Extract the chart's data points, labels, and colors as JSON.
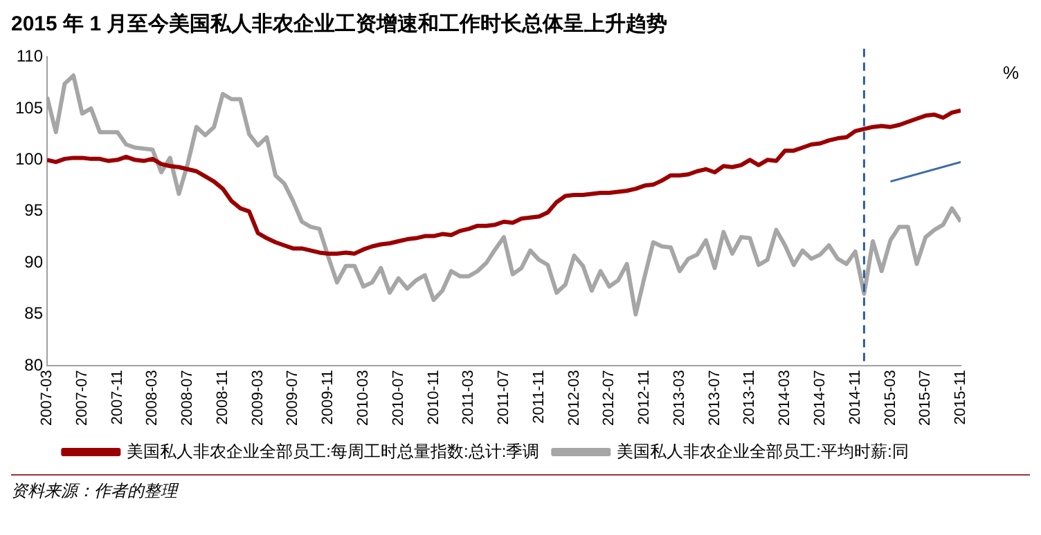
{
  "chart_data": {
    "type": "line",
    "title": "2015 年 1 月至今美国私人非农企业工资增速和工作时长总体呈上升趋势",
    "annotations": [
      "%",
      "资料来源：作者的整理"
    ],
    "x": [
      "2007-03",
      "2007-04",
      "2007-05",
      "2007-06",
      "2007-07",
      "2007-08",
      "2007-09",
      "2007-10",
      "2007-11",
      "2007-12",
      "2008-01",
      "2008-02",
      "2008-03",
      "2008-04",
      "2008-05",
      "2008-06",
      "2008-07",
      "2008-08",
      "2008-09",
      "2008-10",
      "2008-11",
      "2008-12",
      "2009-01",
      "2009-02",
      "2009-03",
      "2009-04",
      "2009-05",
      "2009-06",
      "2009-07",
      "2009-08",
      "2009-09",
      "2009-10",
      "2009-11",
      "2009-12",
      "2010-01",
      "2010-02",
      "2010-03",
      "2010-04",
      "2010-05",
      "2010-06",
      "2010-07",
      "2010-08",
      "2010-09",
      "2010-10",
      "2010-11",
      "2010-12",
      "2011-01",
      "2011-02",
      "2011-03",
      "2011-04",
      "2011-05",
      "2011-06",
      "2011-07",
      "2011-08",
      "2011-09",
      "2011-10",
      "2011-11",
      "2011-12",
      "2012-01",
      "2012-02",
      "2012-03",
      "2012-04",
      "2012-05",
      "2012-06",
      "2012-07",
      "2012-08",
      "2012-09",
      "2012-10",
      "2012-11",
      "2012-12",
      "2013-01",
      "2013-02",
      "2013-03",
      "2013-04",
      "2013-05",
      "2013-06",
      "2013-07",
      "2013-08",
      "2013-09",
      "2013-10",
      "2013-11",
      "2013-12",
      "2014-01",
      "2014-02",
      "2014-03",
      "2014-04",
      "2014-05",
      "2014-06",
      "2014-07",
      "2014-08",
      "2014-09",
      "2014-10",
      "2014-11",
      "2014-12",
      "2015-01",
      "2015-02",
      "2015-03",
      "2015-04",
      "2015-05",
      "2015-06",
      "2015-07",
      "2015-08",
      "2015-09",
      "2015-10",
      "2015-11"
    ],
    "series": [
      {
        "name": "美国私人非农企业全部员工:每周工时总量指数:总计:季调",
        "color": "#9b0000",
        "values": [
          100.0,
          99.8,
          100.1,
          100.2,
          100.2,
          100.1,
          100.1,
          99.9,
          100.0,
          100.3,
          100.0,
          99.9,
          100.1,
          99.6,
          99.4,
          99.3,
          99.1,
          98.9,
          98.4,
          97.9,
          97.2,
          96.0,
          95.3,
          95.0,
          92.9,
          92.4,
          92.0,
          91.7,
          91.4,
          91.4,
          91.2,
          91.0,
          90.9,
          90.9,
          91.0,
          90.9,
          91.3,
          91.6,
          91.8,
          91.9,
          92.1,
          92.3,
          92.4,
          92.6,
          92.6,
          92.8,
          92.7,
          93.1,
          93.3,
          93.6,
          93.6,
          93.7,
          94.0,
          93.9,
          94.3,
          94.4,
          94.5,
          94.9,
          95.9,
          96.5,
          96.6,
          96.6,
          96.7,
          96.8,
          96.8,
          96.9,
          97.0,
          97.2,
          97.5,
          97.6,
          98.0,
          98.5,
          98.5,
          98.6,
          98.9,
          99.1,
          98.8,
          99.4,
          99.3,
          99.5,
          100.0,
          99.5,
          100.0,
          99.9,
          100.9,
          100.9,
          101.2,
          101.5,
          101.6,
          101.9,
          102.1,
          102.2,
          102.8,
          103.0,
          103.2,
          103.3,
          103.2,
          103.4,
          103.7,
          104.0,
          104.3,
          104.4,
          104.1,
          104.6,
          104.8
        ]
      },
      {
        "name": "美国私人非农企业全部员工:平均时薪:同",
        "color": "#a6a6a6",
        "values": [
          106.1,
          102.7,
          107.4,
          108.2,
          104.5,
          105.0,
          102.7,
          102.7,
          102.7,
          101.5,
          101.2,
          101.1,
          101.0,
          98.8,
          100.2,
          96.7,
          99.6,
          103.2,
          102.4,
          103.2,
          106.4,
          105.9,
          105.9,
          102.5,
          101.4,
          102.2,
          98.5,
          97.7,
          96.0,
          94.0,
          93.5,
          93.3,
          90.6,
          88.1,
          89.7,
          89.7,
          87.7,
          88.1,
          89.5,
          87.1,
          88.5,
          87.5,
          88.3,
          88.8,
          86.4,
          87.3,
          89.2,
          88.7,
          88.7,
          89.2,
          90.0,
          91.3,
          92.5,
          88.9,
          89.5,
          91.2,
          90.3,
          89.8,
          87.1,
          87.9,
          90.7,
          89.7,
          87.3,
          89.2,
          87.7,
          88.3,
          89.9,
          85.0,
          88.6,
          92.0,
          91.6,
          91.5,
          89.2,
          90.4,
          90.8,
          92.2,
          89.5,
          93.0,
          90.9,
          92.5,
          92.4,
          89.8,
          90.3,
          93.2,
          91.7,
          89.8,
          91.2,
          90.4,
          90.8,
          91.7,
          90.4,
          89.9,
          91.1,
          87.0,
          92.1,
          89.2,
          92.2,
          93.5,
          93.5,
          89.9,
          92.5,
          93.2,
          93.7,
          95.3,
          94.0
        ]
      },
      {
        "type": "line",
        "color": "#3a6ea5",
        "x": [
          "2015-03",
          "2015-11"
        ],
        "values": [
          97.9,
          99.8
        ]
      }
    ],
    "xlim": [
      "2007-03",
      "2015-11"
    ],
    "xticks": [
      "2007-03",
      "2007-07",
      "2007-11",
      "2008-03",
      "2008-07",
      "2008-11",
      "2009-03",
      "2009-07",
      "2009-11",
      "2010-03",
      "2010-07",
      "2010-11",
      "2011-03",
      "2011-07",
      "2011-11",
      "2012-03",
      "2012-07",
      "2012-11",
      "2013-03",
      "2013-07",
      "2013-11",
      "2014-03",
      "2014-07",
      "2014-11",
      "2015-03",
      "2015-07",
      "2015-11"
    ],
    "ylim": [
      80,
      110
    ],
    "yticks": [
      80,
      85,
      90,
      95,
      100,
      105,
      110
    ],
    "ref_lines": [
      {
        "axis": "x",
        "value": "2014-12",
        "color": "#2e5c9a",
        "line_style": "dashed"
      }
    ],
    "grid": false,
    "legend": "bottom",
    "marker": "none",
    "line_style": "solid"
  }
}
